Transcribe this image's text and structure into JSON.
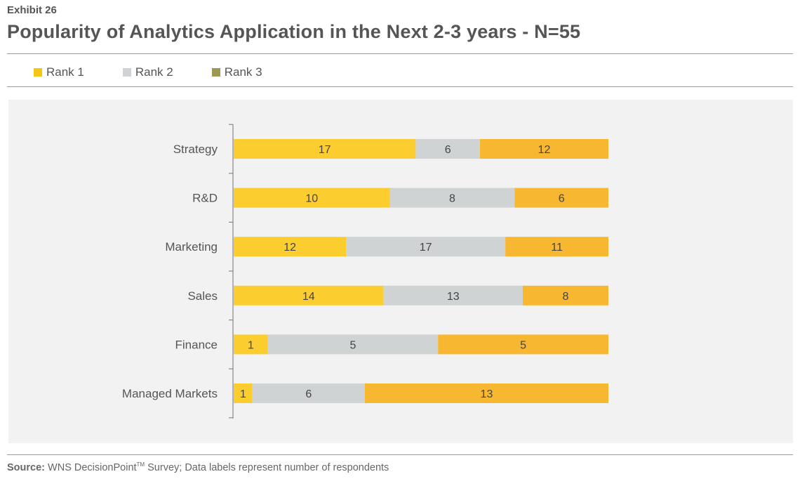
{
  "exhibit": "Exhibit 26",
  "title": "Popularity of Analytics Application in the Next 2-3 years - N=55",
  "legend": [
    {
      "label": "Rank 1",
      "color": "#f5c518"
    },
    {
      "label": "Rank 2",
      "color": "#cfd3d4"
    },
    {
      "label": "Rank 3",
      "color": "#9a9a55"
    }
  ],
  "chart_data": {
    "type": "bar",
    "orientation": "horizontal-stacked-100",
    "categories": [
      "Strategy",
      "R&D",
      "Marketing",
      "Sales",
      "Finance",
      "Managed Markets"
    ],
    "series": [
      {
        "name": "Rank 1",
        "values": [
          17,
          10,
          12,
          14,
          1,
          1
        ],
        "color": "#fccd2f"
      },
      {
        "name": "Rank 2",
        "values": [
          6,
          8,
          17,
          13,
          5,
          6
        ],
        "color": "#cfd3d4"
      },
      {
        "name": "Rank 3",
        "values": [
          12,
          6,
          11,
          8,
          5,
          13
        ],
        "color": "#f7b731"
      }
    ],
    "legend": "top-left",
    "grid": false,
    "data_labels": true
  },
  "source": {
    "label": "Source:",
    "text_before": "WNS DecisionPoint",
    "superscript": "TM",
    "text_after": "Survey; Data labels represent number of respondents"
  }
}
